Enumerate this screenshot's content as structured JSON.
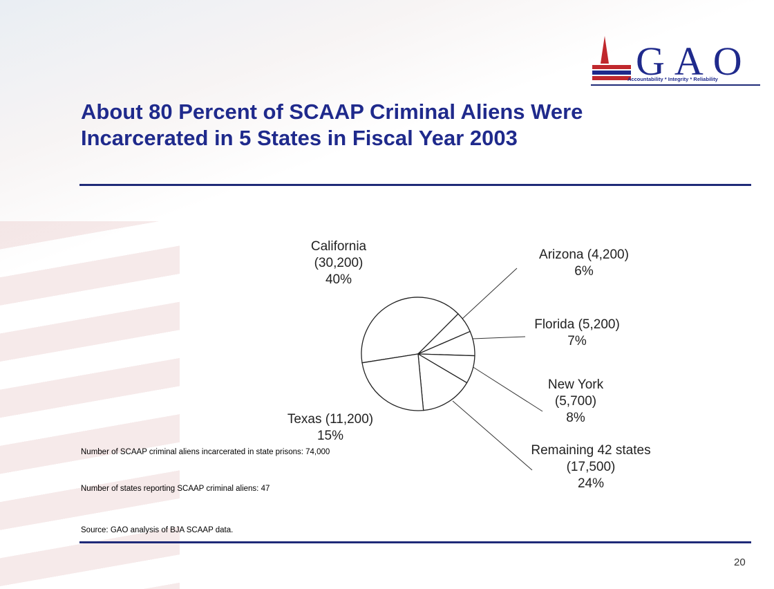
{
  "chart_data": {
    "type": "pie",
    "title": "About 80 Percent of SCAAP Criminal Aliens Were Incarcerated in 5 States in Fiscal Year 2003",
    "categories": [
      "California",
      "Arizona",
      "Florida",
      "New York",
      "Texas",
      "Remaining 42 states"
    ],
    "values": [
      40,
      6,
      7,
      8,
      15,
      24
    ],
    "value_labels": [
      "40%",
      "6%",
      "7%",
      "8%",
      "15%",
      "24%"
    ],
    "counts": [
      30200,
      4200,
      5200,
      5700,
      11200,
      17500
    ],
    "count_labels": [
      "(30,200)",
      "(4,200)",
      "(5,200)",
      "(5,700)",
      "(11,200)",
      "(17,500)"
    ],
    "color": "#ffffff",
    "edge_color": "#222222",
    "notes": [
      "Number of SCAAP criminal aliens incarcerated in state prisons: 74,000",
      "Number of states reporting SCAAP criminal aliens: 47",
      "Source: GAO analysis of BJA SCAAP data."
    ]
  },
  "logo": {
    "name": "GAO",
    "tagline": "Accountability * Integrity * Reliability"
  },
  "page_number": "20"
}
